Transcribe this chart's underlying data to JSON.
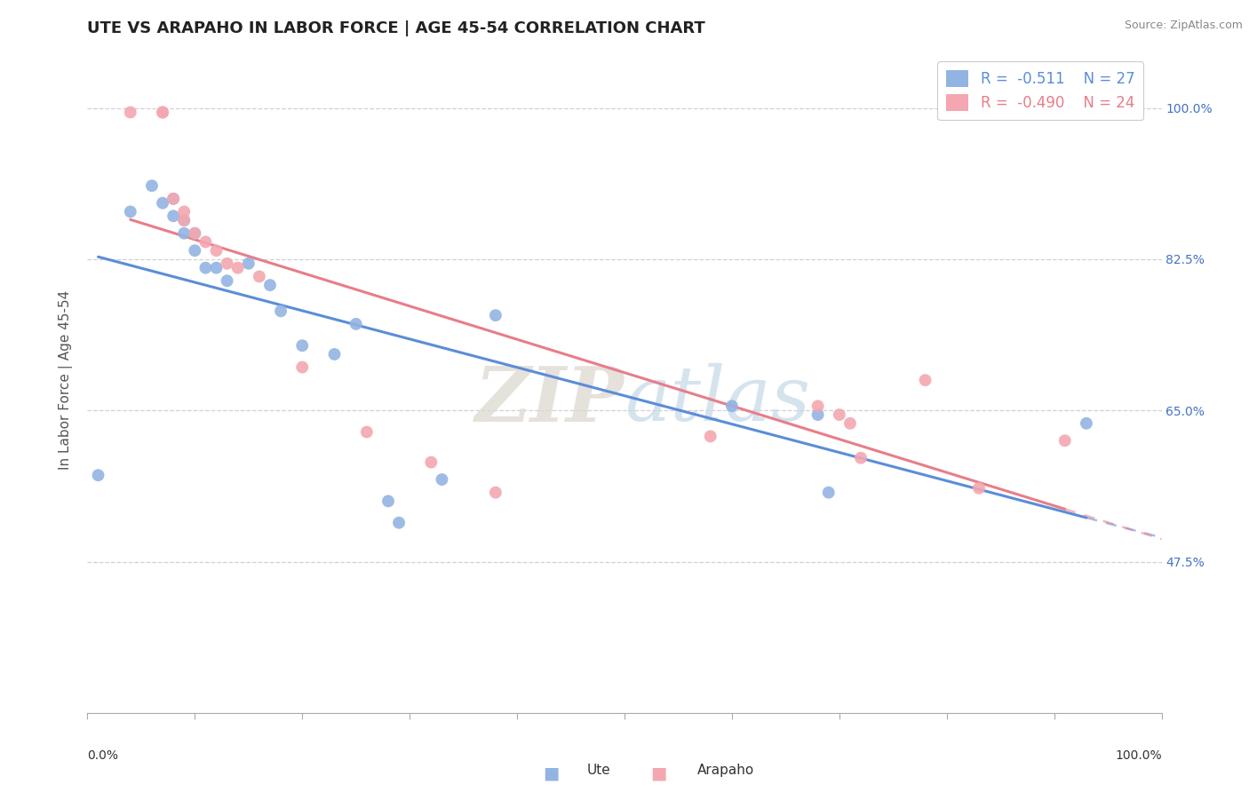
{
  "title": "UTE VS ARAPAHO IN LABOR FORCE | AGE 45-54 CORRELATION CHART",
  "source_text": "Source: ZipAtlas.com",
  "ylabel": "In Labor Force | Age 45-54",
  "xlim": [
    0.0,
    1.0
  ],
  "ylim": [
    0.3,
    1.07
  ],
  "grid_color": "#d0d0d0",
  "grid_style": "--",
  "background_color": "#ffffff",
  "ute_color": "#92b4e3",
  "arapaho_color": "#f4a7b0",
  "ute_line_color": "#5b8dd9",
  "arapaho_line_color": "#e87d8a",
  "legend_R_ute": "-0.511",
  "legend_N_ute": "27",
  "legend_R_arapaho": "-0.490",
  "legend_N_arapaho": "24",
  "ute_scatter_x": [
    0.01,
    0.04,
    0.06,
    0.07,
    0.08,
    0.08,
    0.09,
    0.09,
    0.1,
    0.1,
    0.11,
    0.12,
    0.13,
    0.15,
    0.17,
    0.18,
    0.2,
    0.23,
    0.25,
    0.28,
    0.29,
    0.33,
    0.38,
    0.6,
    0.68,
    0.69,
    0.93
  ],
  "ute_scatter_y": [
    0.575,
    0.88,
    0.91,
    0.89,
    0.895,
    0.875,
    0.87,
    0.855,
    0.855,
    0.835,
    0.815,
    0.815,
    0.8,
    0.82,
    0.795,
    0.765,
    0.725,
    0.715,
    0.75,
    0.545,
    0.52,
    0.57,
    0.76,
    0.655,
    0.645,
    0.555,
    0.635
  ],
  "arapaho_scatter_x": [
    0.04,
    0.07,
    0.07,
    0.08,
    0.09,
    0.09,
    0.1,
    0.11,
    0.12,
    0.13,
    0.14,
    0.16,
    0.2,
    0.26,
    0.32,
    0.38,
    0.58,
    0.68,
    0.7,
    0.71,
    0.72,
    0.78,
    0.83,
    0.91
  ],
  "arapaho_scatter_y": [
    0.995,
    0.995,
    0.995,
    0.895,
    0.88,
    0.87,
    0.855,
    0.845,
    0.835,
    0.82,
    0.815,
    0.805,
    0.7,
    0.625,
    0.59,
    0.555,
    0.62,
    0.655,
    0.645,
    0.635,
    0.595,
    0.685,
    0.56,
    0.615
  ],
  "watermark_line1": "ZIP",
  "watermark_line2": "atlas",
  "title_fontsize": 13,
  "axis_label_fontsize": 11,
  "tick_fontsize": 10,
  "legend_fontsize": 12,
  "right_tick_color": "#4472c4",
  "ytick_labeled": [
    0.475,
    0.65,
    0.825,
    1.0
  ],
  "ytick_labeled_str": [
    "47.5%",
    "65.0%",
    "82.5%",
    "100.0%"
  ]
}
